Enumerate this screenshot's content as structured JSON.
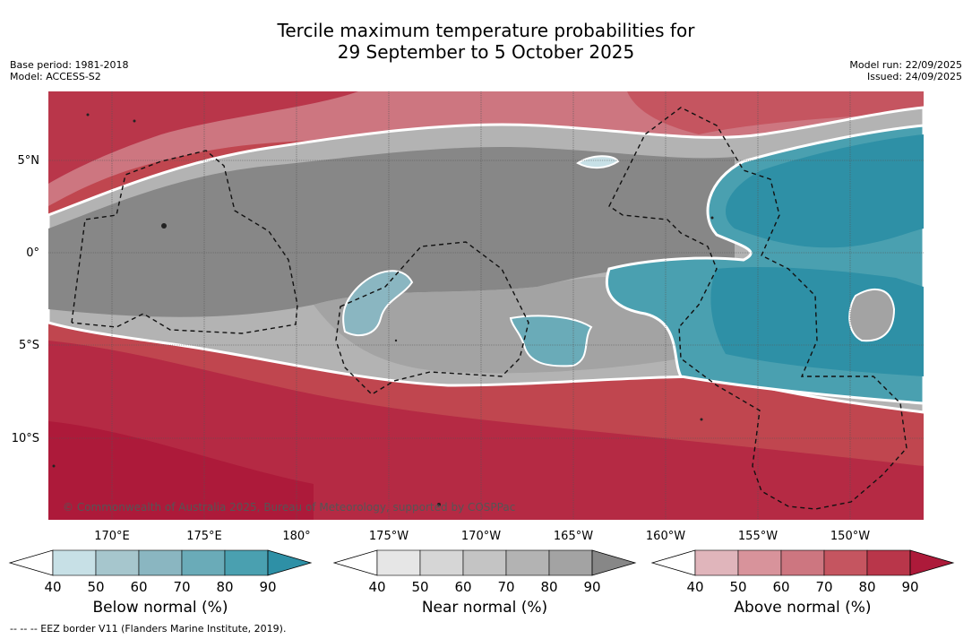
{
  "title": {
    "line1": "Tercile maximum temperature probabilities for",
    "line2": "29 September to 5 October 2025"
  },
  "meta_left": {
    "base_period": "Base period: 1981-2018",
    "model": "Model: ACCESS-S2"
  },
  "meta_right": {
    "model_run": "Model run: 22/09/2025",
    "issued": "Issued: 24/09/2025"
  },
  "map": {
    "lat_labels": [
      "5°N",
      "0°",
      "5°S",
      "10°S"
    ],
    "lon_labels": [
      "170°E",
      "175°E",
      "180°",
      "175°W",
      "170°W",
      "165°W",
      "160°W",
      "155°W",
      "150°W"
    ],
    "copyright": "© Commonwealth of Australia 2025, Bureau of Meteorology, supported by COSPPac"
  },
  "colorbars": [
    {
      "label": "Below normal (%)",
      "ticks": [
        "40",
        "50",
        "60",
        "70",
        "80",
        "90"
      ],
      "colors": [
        "#c7e0e6",
        "#a6c6cd",
        "#8ab6c1",
        "#6aabb8",
        "#4aa0b0",
        "#2e90a6"
      ]
    },
    {
      "label": "Near normal (%)",
      "ticks": [
        "40",
        "50",
        "60",
        "70",
        "80",
        "90"
      ],
      "colors": [
        "#e6e6e6",
        "#d6d6d6",
        "#c4c4c4",
        "#b3b3b3",
        "#a3a3a3",
        "#878787"
      ]
    },
    {
      "label": "Above normal (%)",
      "ticks": [
        "40",
        "50",
        "60",
        "70",
        "80",
        "90"
      ],
      "colors": [
        "#e0b5bb",
        "#d8939b",
        "#cd7680",
        "#c55560",
        "#b9364a",
        "#ad1a3a"
      ]
    }
  ],
  "footer": "-- -- -- EEZ border V11 (Flanders Marine Institute, 2019)."
}
